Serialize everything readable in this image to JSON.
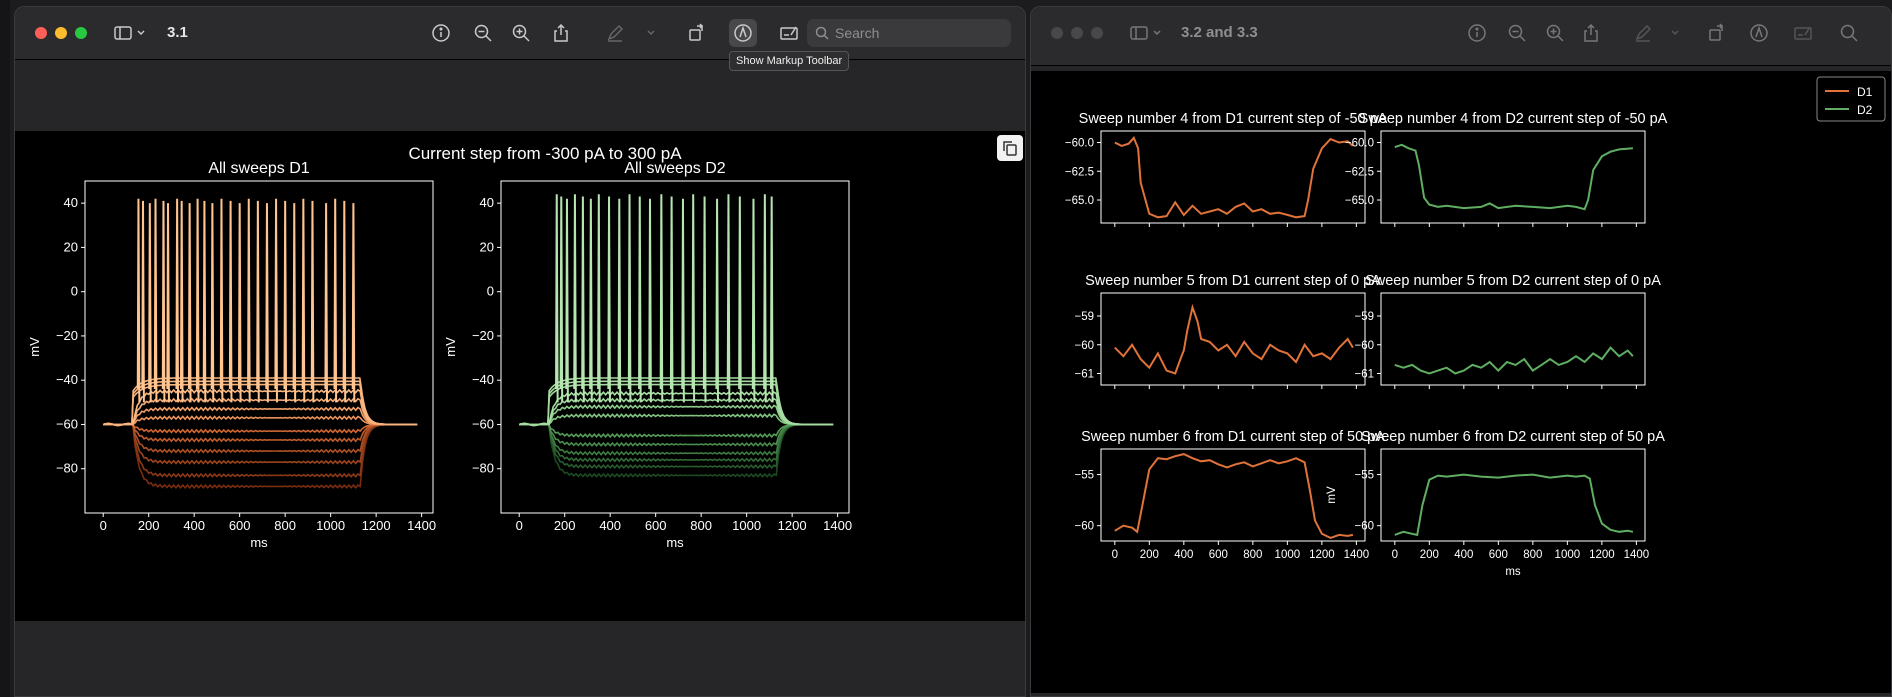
{
  "windows": {
    "left": {
      "title": "3.1",
      "search_placeholder": "Search",
      "tooltip": "Show Markup Toolbar"
    },
    "right": {
      "title": "3.2 and 3.3",
      "search_placeholder": ""
    }
  },
  "icons": [
    "sidebar-icon",
    "chevron-down-icon",
    "info-icon",
    "zoom-out-icon",
    "zoom-in-icon",
    "share-icon",
    "highlight-icon",
    "rotate-icon",
    "markup-icon",
    "form-icon",
    "search-icon",
    "copy-icon"
  ],
  "colors": {
    "d1": "#e0733a",
    "d2": "#5fae62",
    "d1_light": "#ffc48f",
    "d2_light": "#b6e6b0"
  },
  "chart_data": [
    {
      "type": "line",
      "suptitle": "Current step from -300 pA to 300 pA",
      "title": "All sweeps D1",
      "xlabel": "ms",
      "ylabel": "mV",
      "xlim": [
        -80,
        1450
      ],
      "ylim": [
        -100,
        50
      ],
      "xticks": [
        0,
        200,
        400,
        600,
        800,
        1000,
        1200,
        1400
      ],
      "yticks": [
        40,
        20,
        0,
        -20,
        -40,
        -60,
        -80
      ],
      "step_ms": [
        130,
        1130
      ],
      "baseline": -60,
      "hyper_levels": [
        -88,
        -83,
        -77,
        -72,
        -67,
        -63
      ],
      "depol_levels": [
        -57,
        -53,
        -49,
        -45
      ],
      "spike_times": [
        155,
        175,
        205,
        230,
        265,
        285,
        325,
        345,
        380,
        415,
        445,
        480,
        520,
        560,
        600,
        640,
        680,
        720,
        760,
        800,
        840,
        880,
        920,
        980,
        1020,
        1060,
        1100
      ],
      "spike_peak": 42
    },
    {
      "type": "line",
      "title": "All sweeps D2",
      "xlabel": "ms",
      "ylabel": "mV",
      "xlim": [
        -80,
        1450
      ],
      "ylim": [
        -100,
        50
      ],
      "xticks": [
        0,
        200,
        400,
        600,
        800,
        1000,
        1200,
        1400
      ],
      "yticks": [
        40,
        20,
        0,
        -20,
        -40,
        -60,
        -80
      ],
      "step_ms": [
        130,
        1130
      ],
      "baseline": -60,
      "hyper_levels": [
        -83,
        -79,
        -76,
        -73,
        -69,
        -65
      ],
      "depol_levels": [
        -56,
        -52,
        -49,
        -46
      ],
      "spike_times": [
        165,
        185,
        210,
        245,
        280,
        315,
        350,
        395,
        440,
        485,
        530,
        575,
        625,
        670,
        720,
        765,
        815,
        870,
        920,
        970,
        1030,
        1080,
        1110
      ],
      "spike_peak": 44
    },
    {
      "type": "line",
      "title": "Sweep number 4 from D1 current step of -50 pA",
      "xlim": [
        -80,
        1450
      ],
      "ylim": [
        -67,
        -59
      ],
      "yticks": [
        -60.0,
        -62.5,
        -65.0
      ],
      "series": [
        {
          "name": "D1",
          "x": [
            0,
            40,
            80,
            110,
            135,
            150,
            200,
            250,
            300,
            350,
            400,
            450,
            500,
            550,
            600,
            650,
            700,
            750,
            800,
            850,
            900,
            950,
            1000,
            1050,
            1100,
            1120,
            1150,
            1200,
            1250,
            1300,
            1350,
            1380
          ],
          "y": [
            -60.0,
            -60.3,
            -60.1,
            -59.6,
            -60.5,
            -63.5,
            -66.2,
            -66.5,
            -66.4,
            -65.2,
            -66.3,
            -65.5,
            -66.2,
            -66.0,
            -65.8,
            -66.2,
            -65.6,
            -65.3,
            -66.0,
            -65.8,
            -66.2,
            -66.1,
            -66.3,
            -66.5,
            -66.4,
            -65.0,
            -62.3,
            -60.5,
            -59.7,
            -60.0,
            -59.9,
            -60.3
          ]
        }
      ]
    },
    {
      "type": "line",
      "title": "Sweep number 4 from D2 current step of -50 pA",
      "xlim": [
        -80,
        1450
      ],
      "ylim": [
        -67,
        -59
      ],
      "yticks": [
        -60.0,
        -62.5,
        -65.0
      ],
      "series": [
        {
          "name": "D2",
          "x": [
            0,
            40,
            80,
            120,
            140,
            170,
            200,
            250,
            300,
            400,
            500,
            550,
            600,
            700,
            800,
            900,
            1000,
            1050,
            1100,
            1120,
            1150,
            1200,
            1250,
            1300,
            1380
          ],
          "y": [
            -60.4,
            -60.2,
            -60.5,
            -60.7,
            -62.0,
            -64.8,
            -65.4,
            -65.6,
            -65.5,
            -65.7,
            -65.6,
            -65.3,
            -65.7,
            -65.5,
            -65.6,
            -65.7,
            -65.5,
            -65.6,
            -65.8,
            -65.0,
            -62.4,
            -61.2,
            -60.8,
            -60.6,
            -60.5
          ]
        }
      ]
    },
    {
      "type": "line",
      "title": "Sweep number 5 from D1 current step of 0 pA",
      "xlim": [
        -80,
        1450
      ],
      "ylim": [
        -61.4,
        -58.2
      ],
      "yticks": [
        -59,
        -60,
        -61
      ],
      "series": [
        {
          "name": "D1",
          "x": [
            0,
            50,
            100,
            150,
            200,
            250,
            300,
            350,
            380,
            400,
            420,
            450,
            480,
            500,
            550,
            600,
            650,
            700,
            750,
            800,
            850,
            900,
            950,
            1000,
            1050,
            1100,
            1150,
            1200,
            1250,
            1300,
            1350,
            1380
          ],
          "y": [
            -60.1,
            -60.4,
            -60.0,
            -60.5,
            -60.8,
            -60.3,
            -60.9,
            -61.0,
            -60.5,
            -60.2,
            -59.5,
            -58.7,
            -59.2,
            -59.8,
            -59.9,
            -60.2,
            -60.0,
            -60.4,
            -59.9,
            -60.3,
            -60.5,
            -60.0,
            -60.2,
            -60.3,
            -60.6,
            -60.0,
            -60.4,
            -60.3,
            -60.5,
            -60.1,
            -59.8,
            -60.1
          ]
        }
      ]
    },
    {
      "type": "line",
      "title": "Sweep number 5 from D2 current step of 0 pA",
      "xlim": [
        -80,
        1450
      ],
      "ylim": [
        -61.4,
        -58.2
      ],
      "yticks": [
        -59,
        -60,
        -61
      ],
      "series": [
        {
          "name": "D2",
          "x": [
            0,
            50,
            100,
            150,
            200,
            250,
            300,
            350,
            400,
            450,
            500,
            550,
            600,
            650,
            700,
            750,
            800,
            850,
            900,
            950,
            1000,
            1050,
            1100,
            1150,
            1200,
            1250,
            1300,
            1350,
            1380
          ],
          "y": [
            -60.7,
            -60.8,
            -60.7,
            -60.9,
            -61.0,
            -60.9,
            -60.8,
            -61.0,
            -60.9,
            -60.7,
            -60.8,
            -60.6,
            -60.9,
            -60.6,
            -60.7,
            -60.5,
            -60.9,
            -60.7,
            -60.5,
            -60.7,
            -60.6,
            -60.4,
            -60.6,
            -60.3,
            -60.5,
            -60.1,
            -60.4,
            -60.2,
            -60.4
          ]
        }
      ]
    },
    {
      "type": "line",
      "title": "Sweep number 6 from D1 current step of 50 pA",
      "xlim": [
        -80,
        1450
      ],
      "ylim": [
        -61.5,
        -52.5
      ],
      "yticks": [
        -55,
        -60
      ],
      "series": [
        {
          "name": "D1",
          "x": [
            0,
            50,
            100,
            130,
            160,
            200,
            250,
            300,
            350,
            400,
            450,
            500,
            550,
            600,
            650,
            700,
            750,
            800,
            850,
            900,
            950,
            1000,
            1050,
            1100,
            1130,
            1160,
            1200,
            1250,
            1300,
            1350,
            1380
          ],
          "y": [
            -60.5,
            -60.0,
            -60.2,
            -60.6,
            -58.0,
            -54.5,
            -53.4,
            -53.5,
            -53.2,
            -53.0,
            -53.4,
            -53.7,
            -53.6,
            -54.0,
            -54.3,
            -54.0,
            -53.8,
            -54.2,
            -53.9,
            -53.6,
            -53.9,
            -53.7,
            -53.4,
            -53.8,
            -56.5,
            -59.5,
            -60.8,
            -61.2,
            -60.9,
            -61.0,
            -60.9
          ]
        }
      ]
    },
    {
      "type": "line",
      "title": "Sweep number 6 from D2 current step of 50 pA",
      "ylabel": "mV",
      "xlabel": "ms",
      "xlim": [
        -80,
        1450
      ],
      "ylim": [
        -61.5,
        -52.5
      ],
      "xticks": [
        0,
        200,
        400,
        600,
        800,
        1000,
        1200,
        1400
      ],
      "yticks": [
        -55,
        -60
      ],
      "series": [
        {
          "name": "D2",
          "x": [
            0,
            50,
            100,
            130,
            160,
            200,
            250,
            300,
            400,
            500,
            600,
            700,
            800,
            900,
            1000,
            1050,
            1100,
            1130,
            1160,
            1200,
            1250,
            1300,
            1350,
            1380
          ],
          "y": [
            -60.9,
            -60.6,
            -60.8,
            -60.9,
            -58.0,
            -55.5,
            -55.1,
            -55.2,
            -55.0,
            -55.2,
            -55.3,
            -55.1,
            -55.0,
            -55.3,
            -55.1,
            -55.2,
            -55.1,
            -55.4,
            -58.0,
            -59.8,
            -60.4,
            -60.6,
            -60.5,
            -60.6
          ]
        }
      ]
    }
  ],
  "legend": {
    "entries": [
      "D1",
      "D2"
    ],
    "placement": "top-right"
  }
}
